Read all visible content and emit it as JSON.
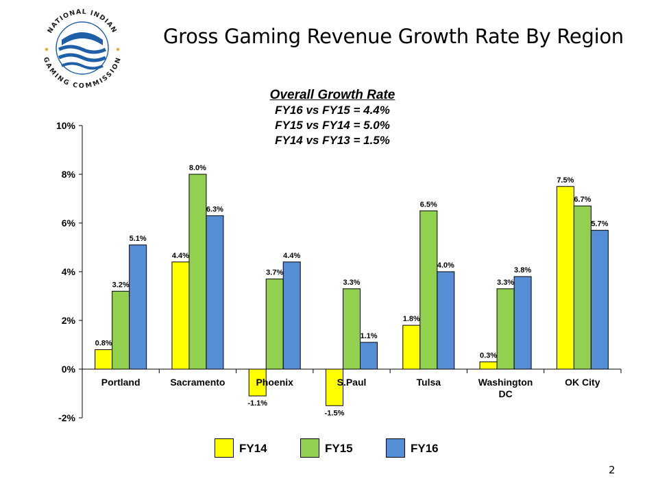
{
  "slide": {
    "title": "Gross Gaming Revenue Growth Rate By Region",
    "page_number": "2",
    "logo_text_top": "NATIONAL INDIAN",
    "logo_text_bottom": "GAMING COMMISSION"
  },
  "summary": {
    "heading": "Overall Growth Rate",
    "lines": [
      "FY16 vs FY15 = 4.4%",
      "FY15 vs FY14 = 5.0%",
      "FY14 vs FY13 = 1.5%"
    ]
  },
  "chart_data": {
    "type": "bar",
    "title": "",
    "xlabel": "",
    "ylabel": "",
    "categories": [
      "Portland",
      "Sacramento",
      "Phoenix",
      "S.Paul",
      "Tulsa",
      "Washington DC",
      "OK City"
    ],
    "series": [
      {
        "name": "FY14",
        "values": [
          0.8,
          4.4,
          -1.1,
          -1.5,
          1.8,
          0.3,
          7.5
        ],
        "color": "#ffff00"
      },
      {
        "name": "FY15",
        "values": [
          3.2,
          8.0,
          3.7,
          3.3,
          6.5,
          3.3,
          6.7
        ],
        "color": "#92d050"
      },
      {
        "name": "FY16",
        "values": [
          5.1,
          6.3,
          4.4,
          1.1,
          4.0,
          3.8,
          5.7
        ],
        "color": "#558ed5"
      }
    ],
    "ylim": [
      -2,
      10
    ],
    "yticks": [
      "-2%",
      "0%",
      "2%",
      "4%",
      "6%",
      "8%",
      "10%"
    ],
    "value_suffix": "%",
    "grid": false,
    "legend_position": "bottom"
  }
}
